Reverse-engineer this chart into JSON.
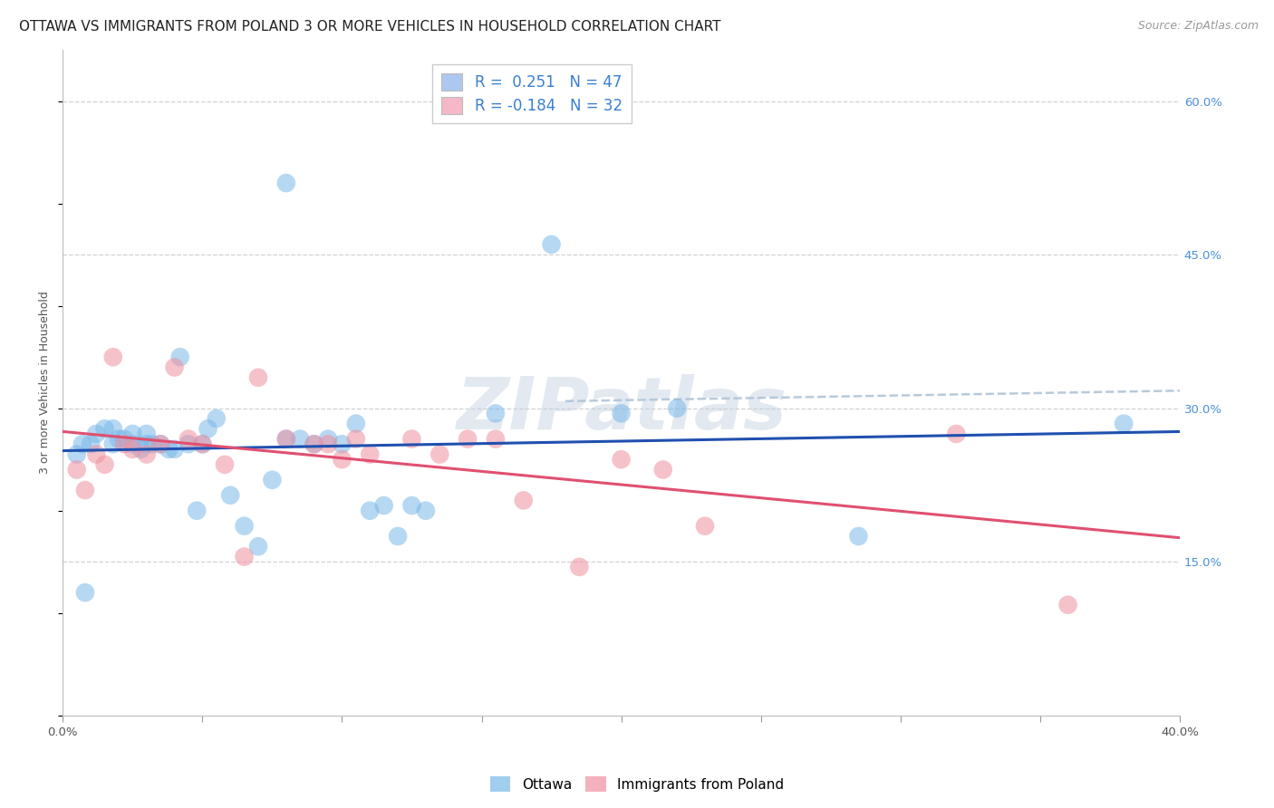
{
  "title": "OTTAWA VS IMMIGRANTS FROM POLAND 3 OR MORE VEHICLES IN HOUSEHOLD CORRELATION CHART",
  "source": "Source: ZipAtlas.com",
  "ylabel": "3 or more Vehicles in Household",
  "xlim": [
    0.0,
    0.4
  ],
  "ylim": [
    0.0,
    0.65
  ],
  "legend1_label": "R =  0.251   N = 47",
  "legend2_label": "R = -0.184   N = 32",
  "legend1_color": "#adc8f0",
  "legend2_color": "#f5b8c8",
  "blue_color": "#7ab8e8",
  "pink_color": "#f090a0",
  "blue_line_color": "#2050b0",
  "pink_line_color": "#e05070",
  "dash_color": "#b0c4d8",
  "background_color": "#ffffff",
  "grid_color": "#cccccc",
  "watermark_text": "ZIPatlas",
  "watermark_color": "#c0d0e0",
  "title_fontsize": 11,
  "axis_label_fontsize": 9,
  "tick_fontsize": 9.5,
  "legend_fontsize": 12,
  "source_fontsize": 9,
  "ottawa_x": [
    0.005,
    0.007,
    0.01,
    0.012,
    0.015,
    0.018,
    0.018,
    0.02,
    0.022,
    0.025,
    0.025,
    0.028,
    0.03,
    0.03,
    0.032,
    0.035,
    0.038,
    0.04,
    0.042,
    0.045,
    0.048,
    0.05,
    0.052,
    0.055,
    0.06,
    0.065,
    0.07,
    0.075,
    0.08,
    0.085,
    0.09,
    0.095,
    0.1,
    0.105,
    0.11,
    0.115,
    0.12,
    0.125,
    0.13,
    0.08,
    0.155,
    0.175,
    0.2,
    0.22,
    0.285,
    0.38,
    0.008
  ],
  "ottawa_y": [
    0.255,
    0.265,
    0.265,
    0.275,
    0.28,
    0.265,
    0.28,
    0.27,
    0.27,
    0.265,
    0.275,
    0.26,
    0.265,
    0.275,
    0.265,
    0.265,
    0.26,
    0.26,
    0.35,
    0.265,
    0.2,
    0.265,
    0.28,
    0.29,
    0.215,
    0.185,
    0.165,
    0.23,
    0.27,
    0.27,
    0.265,
    0.27,
    0.265,
    0.285,
    0.2,
    0.205,
    0.175,
    0.205,
    0.2,
    0.52,
    0.295,
    0.46,
    0.295,
    0.3,
    0.175,
    0.285,
    0.12
  ],
  "poland_x": [
    0.005,
    0.008,
    0.012,
    0.015,
    0.018,
    0.022,
    0.025,
    0.03,
    0.035,
    0.04,
    0.045,
    0.05,
    0.058,
    0.065,
    0.07,
    0.08,
    0.09,
    0.095,
    0.1,
    0.105,
    0.11,
    0.125,
    0.135,
    0.145,
    0.155,
    0.165,
    0.185,
    0.2,
    0.215,
    0.23,
    0.32,
    0.36
  ],
  "poland_y": [
    0.24,
    0.22,
    0.255,
    0.245,
    0.35,
    0.265,
    0.26,
    0.255,
    0.265,
    0.34,
    0.27,
    0.265,
    0.245,
    0.155,
    0.33,
    0.27,
    0.265,
    0.265,
    0.25,
    0.27,
    0.255,
    0.27,
    0.255,
    0.27,
    0.27,
    0.21,
    0.145,
    0.25,
    0.24,
    0.185,
    0.275,
    0.108
  ]
}
